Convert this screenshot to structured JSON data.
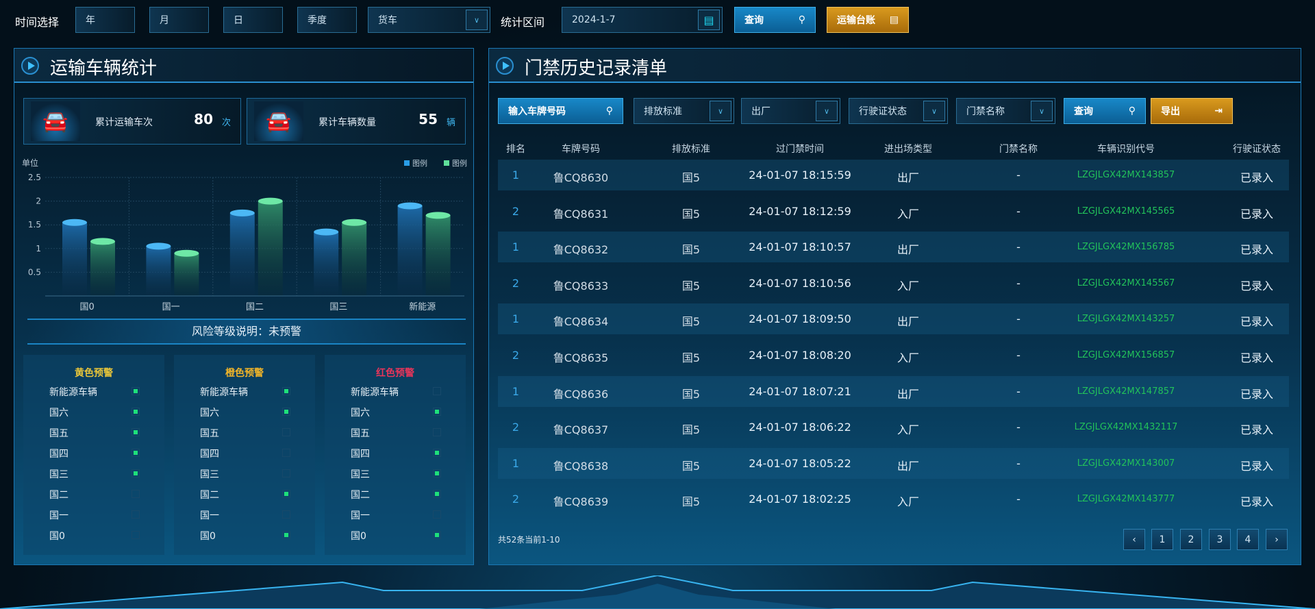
{
  "topbar": {
    "time_label": "时间选择",
    "year": "年",
    "month": "月",
    "day": "日",
    "quarter": "季度",
    "vehicle_type": "货车",
    "range_label": "统计区间",
    "date": "2024-1-7",
    "query": "查询",
    "ledger": "运输台账"
  },
  "left": {
    "title": "运输车辆统计",
    "stats": [
      {
        "label": "累计运输车次",
        "value": "80",
        "unit": "次"
      },
      {
        "label": "累计车辆数量",
        "value": "55",
        "unit": "辆"
      }
    ],
    "risk": "风险等级说明：未预警",
    "warnings": [
      {
        "title": "黄色预警",
        "color": "#e8c53a",
        "items": [
          {
            "label": "新能源车辆",
            "on": true
          },
          {
            "label": "国六",
            "on": true
          },
          {
            "label": "国五",
            "on": true
          },
          {
            "label": "国四",
            "on": true
          },
          {
            "label": "国三",
            "on": true
          },
          {
            "label": "国二",
            "on": false
          },
          {
            "label": "国一",
            "on": false
          },
          {
            "label": "国0",
            "on": false
          }
        ]
      },
      {
        "title": "橙色预警",
        "color": "#f0b429",
        "items": [
          {
            "label": "新能源车辆",
            "on": true
          },
          {
            "label": "国六",
            "on": true
          },
          {
            "label": "国五",
            "on": false
          },
          {
            "label": "国四",
            "on": false
          },
          {
            "label": "国三",
            "on": false
          },
          {
            "label": "国二",
            "on": true
          },
          {
            "label": "国一",
            "on": false
          },
          {
            "label": "国0",
            "on": true
          }
        ]
      },
      {
        "title": "红色预警",
        "color": "#e8355a",
        "items": [
          {
            "label": "新能源车辆",
            "on": false
          },
          {
            "label": "国六",
            "on": true
          },
          {
            "label": "国五",
            "on": false
          },
          {
            "label": "国四",
            "on": true
          },
          {
            "label": "国三",
            "on": true
          },
          {
            "label": "国二",
            "on": true
          },
          {
            "label": "国一",
            "on": false
          },
          {
            "label": "国0",
            "on": true
          }
        ]
      }
    ]
  },
  "chart_data": {
    "type": "bar",
    "ylabel": "单位",
    "categories": [
      "国0",
      "国一",
      "国二",
      "国三",
      "新能源"
    ],
    "ylim": [
      0,
      2.5
    ],
    "yticks": [
      "0.5",
      "1",
      "1.5",
      "2",
      "2.5"
    ],
    "grid": true,
    "legend": "top-right",
    "series": [
      {
        "name": "图例",
        "color": "#2a9ee8",
        "values": [
          1.55,
          1.05,
          1.75,
          1.35,
          1.9
        ]
      },
      {
        "name": "图例",
        "color": "#5fe09a",
        "values": [
          1.15,
          0.9,
          2.0,
          1.55,
          1.7
        ]
      }
    ]
  },
  "right": {
    "title": "门禁历史记录清单",
    "filters": {
      "plate_placeholder": "输入车牌号码",
      "emission": "排放标准",
      "direction": "出厂",
      "license": "行驶证状态",
      "gate": "门禁名称",
      "query": "查询",
      "export": "导出"
    },
    "columns": [
      "排名",
      "车牌号码",
      "排放标准",
      "过门禁时间",
      "进出场类型",
      "门禁名称",
      "车辆识别代号",
      "行驶证状态"
    ],
    "rows": [
      [
        "1",
        "鲁CQ8630",
        "国5",
        "24-01-07 18:15:59",
        "出厂",
        "-",
        "LZGJLGX42MX143857",
        "已录入"
      ],
      [
        "2",
        "鲁CQ8631",
        "国5",
        "24-01-07 18:12:59",
        "入厂",
        "-",
        "LZGJLGX42MX145565",
        "已录入"
      ],
      [
        "1",
        "鲁CQ8632",
        "国5",
        "24-01-07 18:10:57",
        "出厂",
        "-",
        "LZGJLGX42MX156785",
        "已录入"
      ],
      [
        "2",
        "鲁CQ8633",
        "国5",
        "24-01-07 18:10:56",
        "入厂",
        "-",
        "LZGJLGX42MX145567",
        "已录入"
      ],
      [
        "1",
        "鲁CQ8634",
        "国5",
        "24-01-07 18:09:50",
        "出厂",
        "-",
        "LZGJLGX42MX143257",
        "已录入"
      ],
      [
        "2",
        "鲁CQ8635",
        "国5",
        "24-01-07 18:08:20",
        "入厂",
        "-",
        "LZGJLGX42MX156857",
        "已录入"
      ],
      [
        "1",
        "鲁CQ8636",
        "国5",
        "24-01-07 18:07:21",
        "出厂",
        "-",
        "LZGJLGX42MX147857",
        "已录入"
      ],
      [
        "2",
        "鲁CQ8637",
        "国5",
        "24-01-07 18:06:22",
        "入厂",
        "-",
        "LZGJLGX42MX1432117",
        "已录入"
      ],
      [
        "1",
        "鲁CQ8638",
        "国5",
        "24-01-07 18:05:22",
        "出厂",
        "-",
        "LZGJLGX42MX143007",
        "已录入"
      ],
      [
        "2",
        "鲁CQ8639",
        "国5",
        "24-01-07 18:02:25",
        "入厂",
        "-",
        "LZGJLGX42MX143777",
        "已录入"
      ]
    ],
    "summary": "共52条当前1-10",
    "pages": [
      "‹",
      "1",
      "2",
      "3",
      "4",
      "›"
    ]
  },
  "colors": {
    "rank": "#3aa8e8",
    "vin": "#22c25a"
  }
}
